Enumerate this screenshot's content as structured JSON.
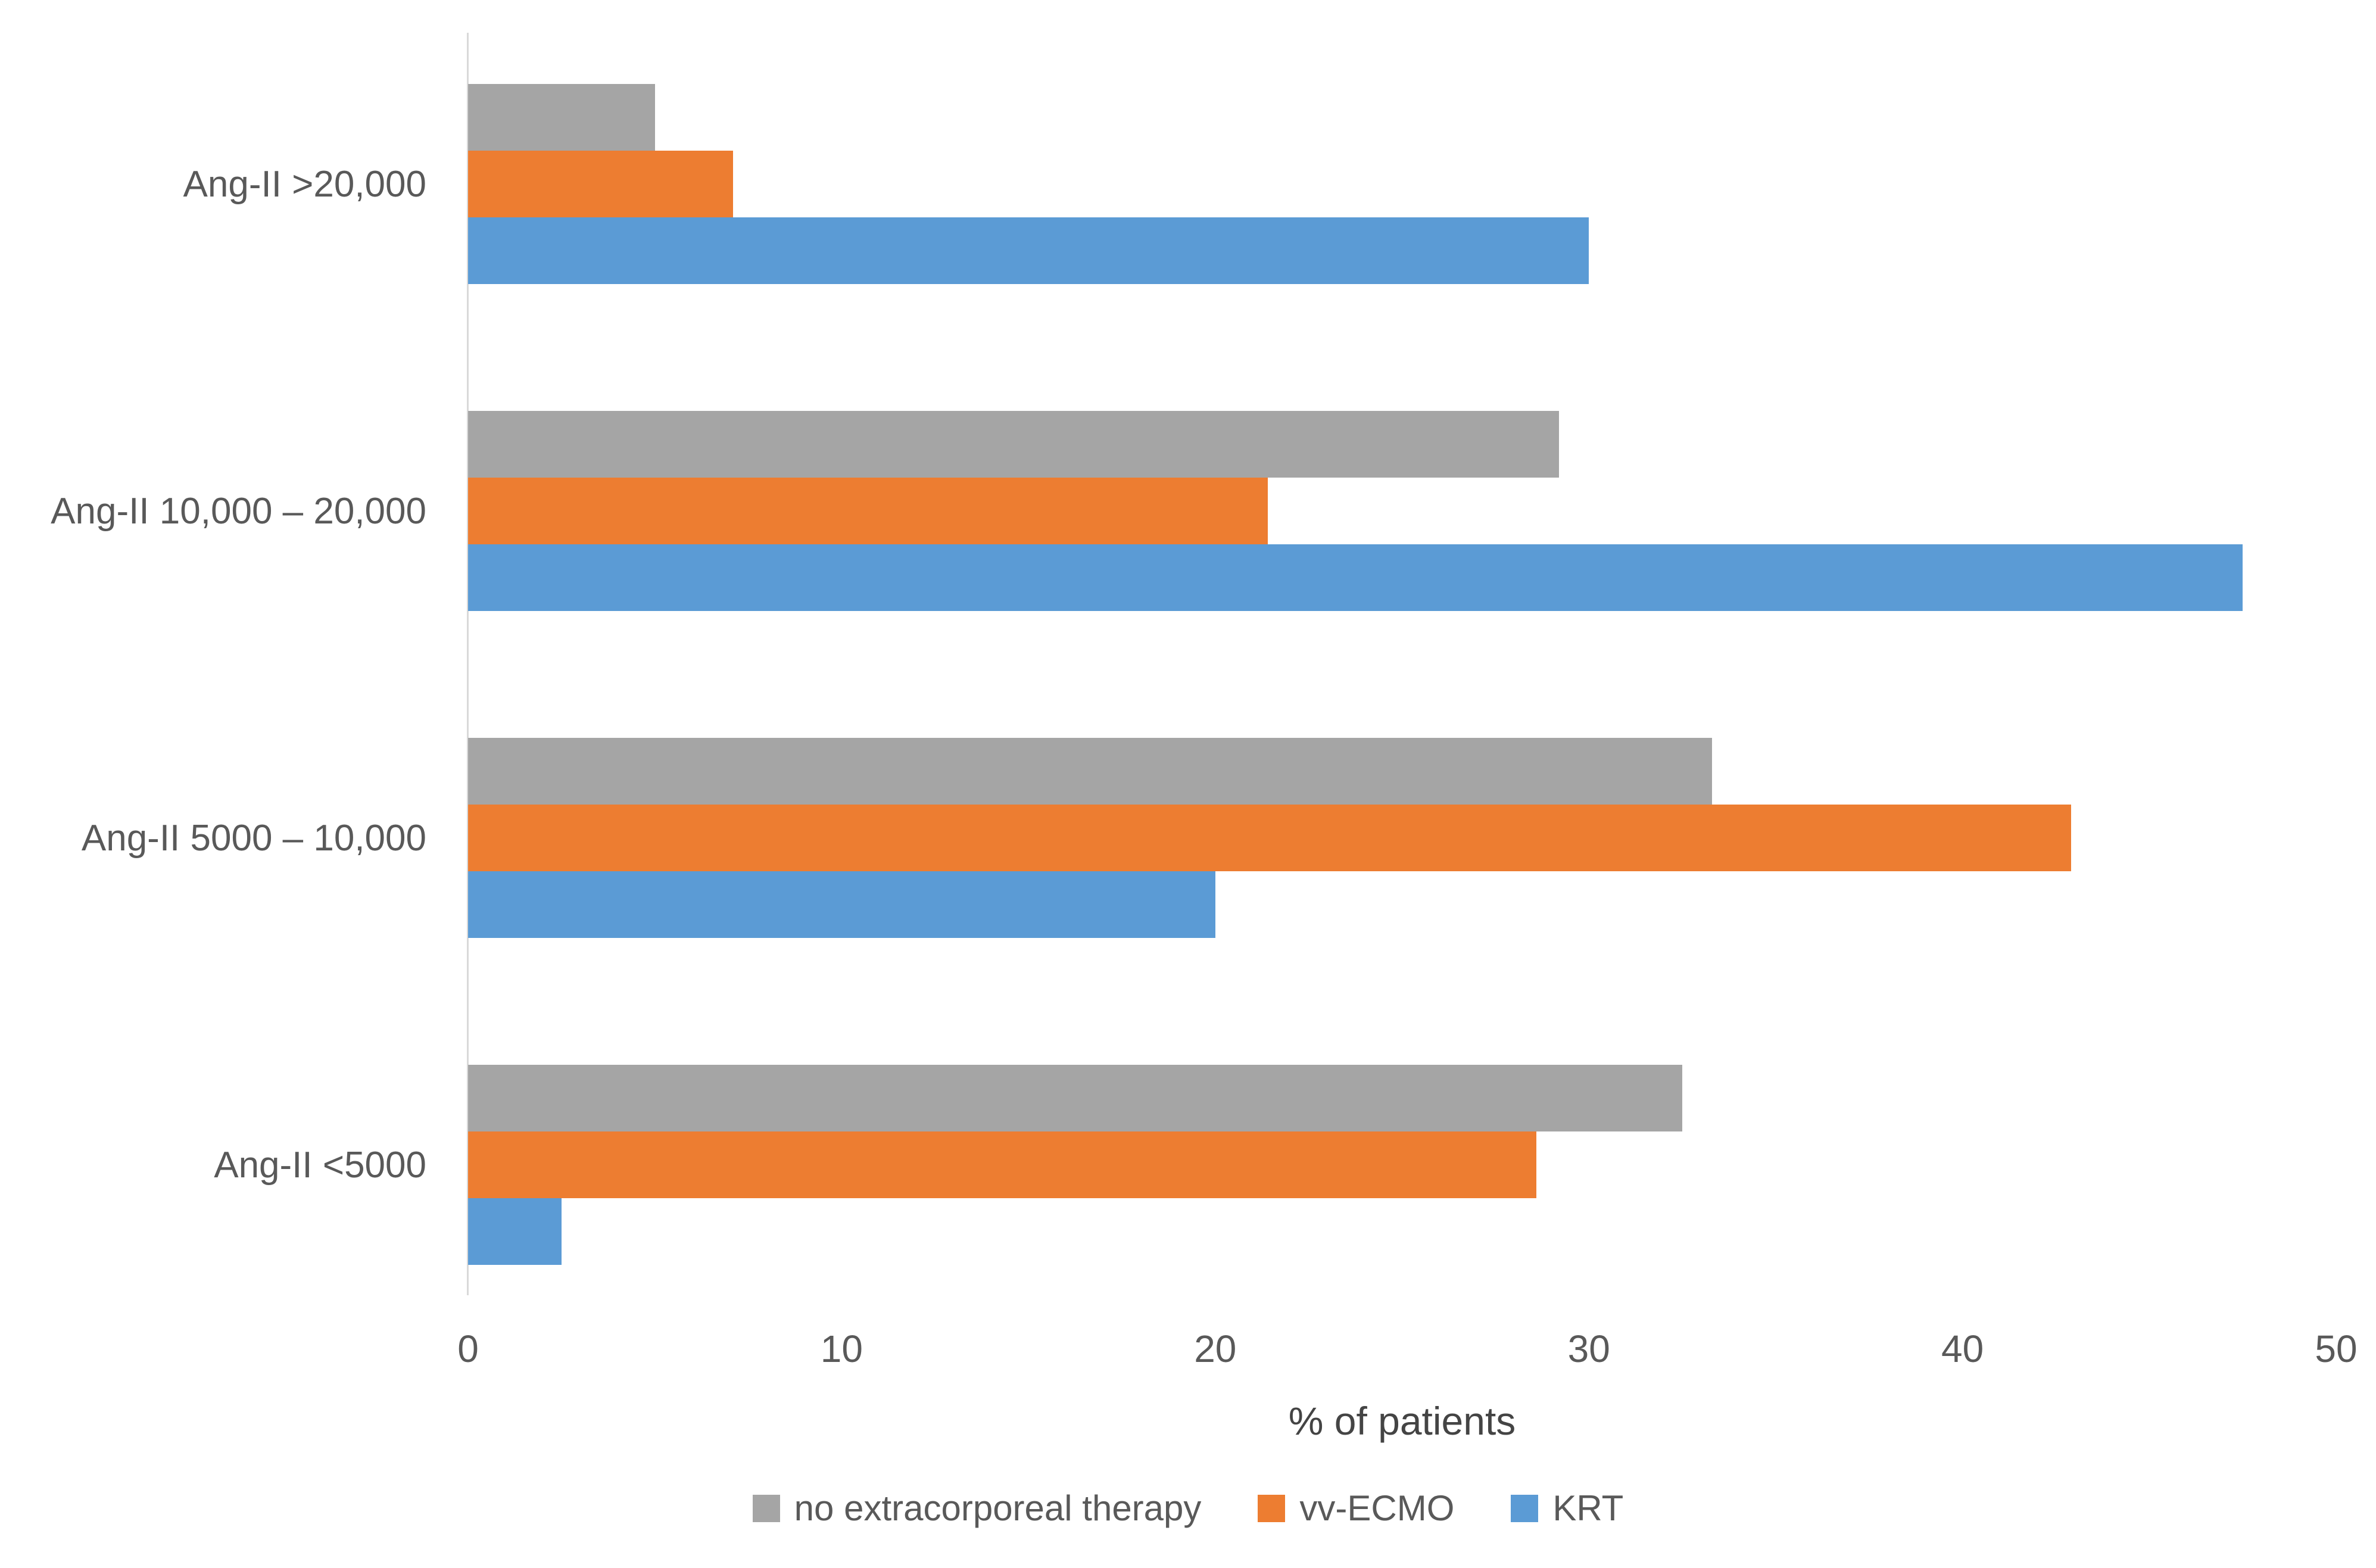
{
  "chart_data": {
    "type": "bar",
    "orientation": "horizontal",
    "title": "",
    "categories": [
      "Ang-II >20,000",
      "Ang-II 10,000 – 20,000",
      "Ang-II 5000 – 10,000",
      "Ang-II <5000"
    ],
    "category_order": "top-to-bottom",
    "series": [
      {
        "name": "no extracorporeal therapy",
        "color": "#A5A5A5",
        "values": [
          5.0,
          29.2,
          33.3,
          32.5
        ]
      },
      {
        "name": "vv-ECMO",
        "color": "#ED7D31",
        "values": [
          7.1,
          21.4,
          42.9,
          28.6
        ]
      },
      {
        "name": "KRT",
        "color": "#5B9BD5",
        "values": [
          30.0,
          47.5,
          20.0,
          2.5
        ]
      }
    ],
    "xlabel": "% of patients",
    "ylabel": "",
    "xlim": [
      0,
      50
    ],
    "x_ticks": [
      "0",
      "10",
      "20",
      "30",
      "40",
      "50"
    ],
    "grid": false,
    "legend_position": "bottom",
    "axis_line_color": "#D9D9D9",
    "text_color": "#595959"
  }
}
